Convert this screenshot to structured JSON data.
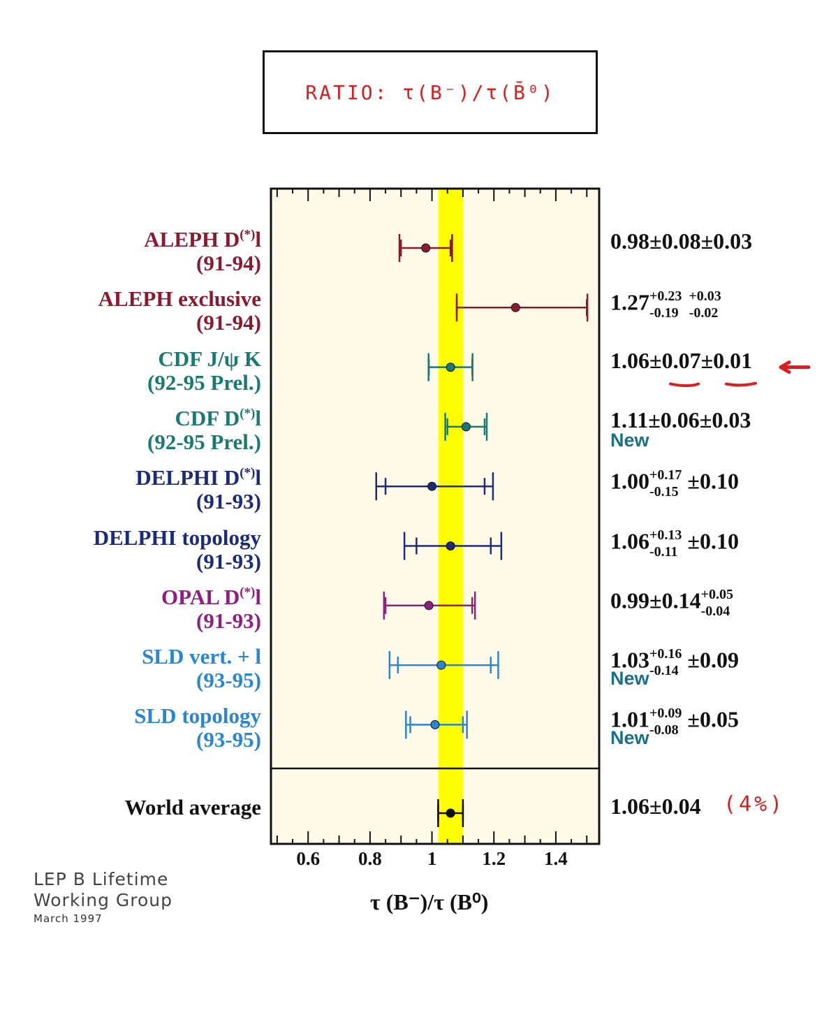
{
  "title_box": "RATIO: τ(B⁻)/τ(B̄⁰)",
  "chart_data": {
    "type": "scatter",
    "xlabel": "τ (B⁻)/τ (B⁰)",
    "xlim": [
      0.48,
      1.54
    ],
    "x_ticks": [
      "0.6",
      "0.8",
      "1",
      "1.2",
      "1.4"
    ],
    "band": [
      1.02,
      1.1
    ],
    "band_color": "#ffff00",
    "measurements": [
      {
        "label": "ALEPH D",
        "sup": "(*)",
        "tail": "l",
        "period": "(91-94)",
        "color": "#8b1a2e",
        "value": 0.98,
        "stat_lo": 0.08,
        "stat_hi": 0.08,
        "tot_lo": 0.085,
        "tot_hi": 0.085,
        "result": "0.98±0.08±0.03",
        "new": ""
      },
      {
        "label": "ALEPH exclusive",
        "sup": "",
        "tail": "",
        "period": "(91-94)",
        "color": "#8b1a2e",
        "value": 1.27,
        "stat_lo": 0.19,
        "stat_hi": 0.23,
        "tot_lo": 0.19,
        "tot_hi": 0.232,
        "result": "1.27",
        "result_sup": "+0.23  +0.03",
        "result_sub": "-0.19   -0.02",
        "new": ""
      },
      {
        "label": "CDF J/ψ K",
        "sup": "",
        "tail": "",
        "period": "(92-95 Prel.)",
        "color": "#1a7a72",
        "value": 1.06,
        "stat_lo": 0.07,
        "stat_hi": 0.07,
        "tot_lo": 0.071,
        "tot_hi": 0.071,
        "result": "1.06±0.07±0.01",
        "new": ""
      },
      {
        "label": "CDF  D",
        "sup": "(*)",
        "tail": "l",
        "period": "(92-95 Prel.)",
        "color": "#1a7a72",
        "value": 1.11,
        "stat_lo": 0.06,
        "stat_hi": 0.06,
        "tot_lo": 0.067,
        "tot_hi": 0.067,
        "result": "1.11±0.06±0.03",
        "new": "New"
      },
      {
        "label": "DELPHI D",
        "sup": "(*)",
        "tail": "l",
        "period": "(91-93)",
        "color": "#1c2a7a",
        "value": 1.0,
        "stat_lo": 0.15,
        "stat_hi": 0.17,
        "tot_lo": 0.18,
        "tot_hi": 0.197,
        "result": "1.00",
        "result_sup": "+0.17",
        "result_sub": "-0.15",
        "result_tail": " ±0.10",
        "new": ""
      },
      {
        "label": "DELPHI topology",
        "sup": "",
        "tail": "",
        "period": "(91-93)",
        "color": "#1c2a7a",
        "value": 1.06,
        "stat_lo": 0.11,
        "stat_hi": 0.13,
        "tot_lo": 0.149,
        "tot_hi": 0.164,
        "result": "1.06",
        "result_sup": "+0.13",
        "result_sub": "-0.11",
        "result_tail": " ±0.10",
        "new": ""
      },
      {
        "label": "OPAL D",
        "sup": "(*)",
        "tail": "l",
        "period": "(91-93)",
        "color": "#8e1e80",
        "value": 0.99,
        "stat_lo": 0.14,
        "stat_hi": 0.14,
        "tot_lo": 0.145,
        "tot_hi": 0.149,
        "result": "0.99±0.14",
        "result_sup": "+0.05",
        "result_sub": "-0.04",
        "new": ""
      },
      {
        "label": "SLD vert. + l",
        "sup": "",
        "tail": "",
        "period": "(93-95)",
        "color": "#2a86d0",
        "value": 1.03,
        "stat_lo": 0.14,
        "stat_hi": 0.16,
        "tot_lo": 0.167,
        "tot_hi": 0.184,
        "result": "1.03",
        "result_sup": "+0.16",
        "result_sub": "-0.14",
        "result_tail": " ±0.09",
        "new": "New"
      },
      {
        "label": "SLD topology",
        "sup": "",
        "tail": "",
        "period": "(93-95)",
        "color": "#2a86d0",
        "value": 1.01,
        "stat_lo": 0.08,
        "stat_hi": 0.09,
        "tot_lo": 0.094,
        "tot_hi": 0.103,
        "result": "1.01",
        "result_sup": "+0.09",
        "result_sub": "-0.08",
        "result_tail": " ±0.05",
        "new": "New"
      }
    ],
    "world_average": {
      "label": "World average",
      "color": "#111111",
      "value": 1.06,
      "err": 0.04,
      "result": "1.06±0.04"
    }
  },
  "annotation": "(4%)",
  "credit": {
    "line1": "LEP B Lifetime",
    "line2": "Working Group",
    "line3": "March 1997"
  }
}
